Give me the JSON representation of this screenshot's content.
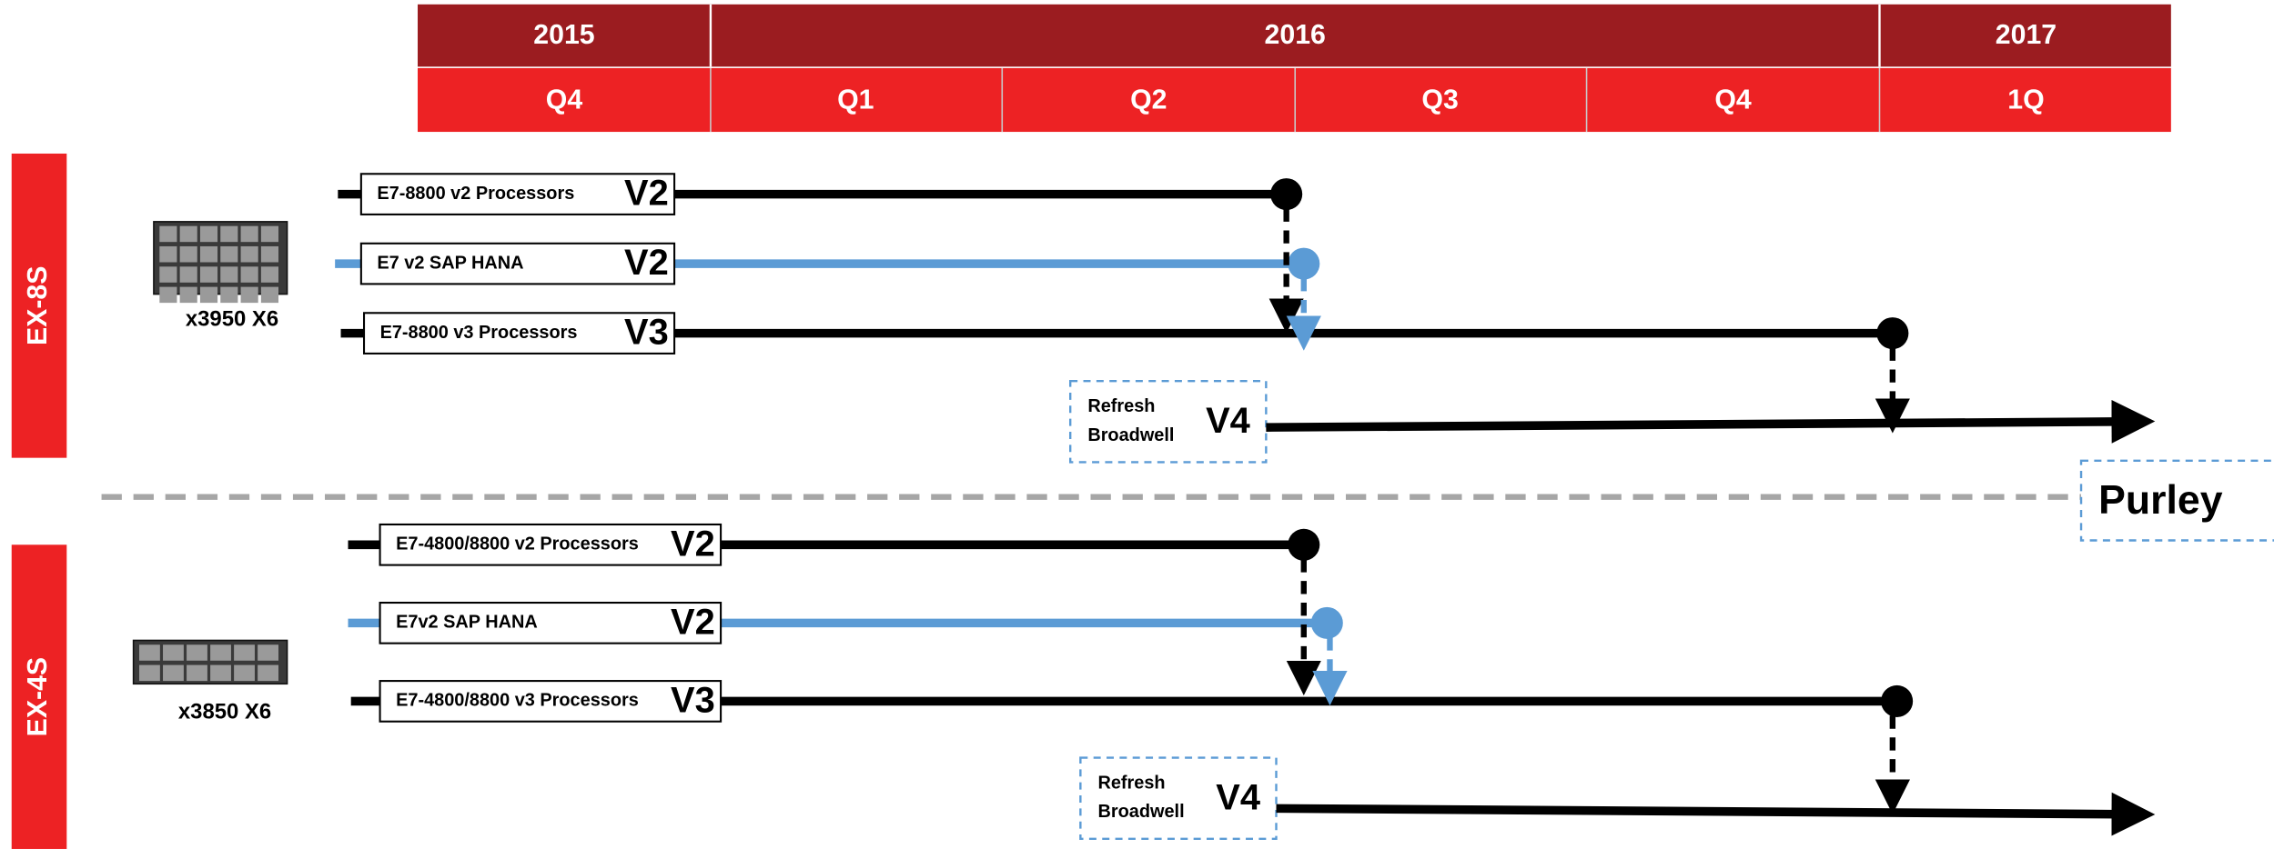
{
  "header": {
    "years": [
      "2015",
      "2016",
      "2017"
    ],
    "quarters": [
      "Q4",
      "Q1",
      "Q2",
      "Q3",
      "Q4",
      "1Q"
    ]
  },
  "sections": [
    {
      "label": "EX-8S",
      "server": "x3950 X6",
      "rows": [
        {
          "name": "E7-8800 v2 Processors",
          "version": "V2"
        },
        {
          "name": "E7 v2 SAP HANA",
          "version": "V2"
        },
        {
          "name": "E7-8800 v3 Processors",
          "version": "V3"
        }
      ],
      "refresh": {
        "name": "Refresh\nBroadwell",
        "version": "V4"
      }
    },
    {
      "label": "EX-4S",
      "server": "x3850 X6",
      "rows": [
        {
          "name": "E7-4800/8800 v2 Processors",
          "version": "V2"
        },
        {
          "name": "E7v2 SAP HANA",
          "version": "V2"
        },
        {
          "name": "E7-4800/8800 v3 Processors",
          "version": "V3"
        }
      ],
      "refresh": {
        "name": "Refresh\nBroadwell",
        "version": "V4"
      }
    }
  ],
  "next": "Purley"
}
